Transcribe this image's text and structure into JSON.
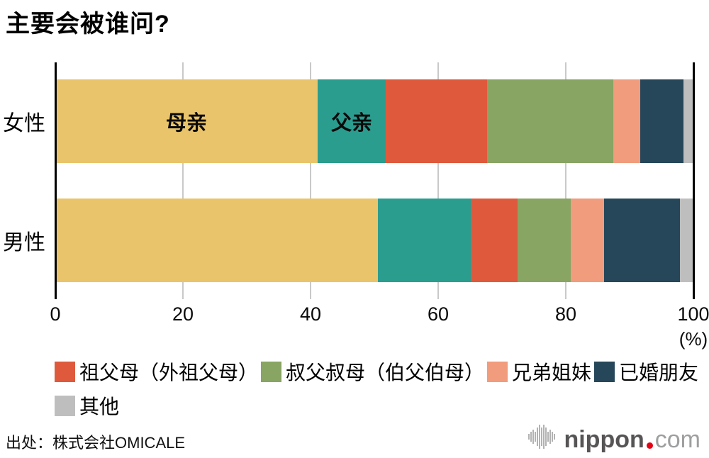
{
  "title": "主要会被谁问?",
  "chart_data": {
    "type": "bar",
    "orientation": "horizontal",
    "stacked": true,
    "unit": "%",
    "title": "主要会被谁问?",
    "categories": [
      "母亲",
      "父亲",
      "祖父母（外祖父母）",
      "叔父叔母（伯父伯母）",
      "兄弟姐妹",
      "已婚朋友",
      "其他"
    ],
    "colors": [
      "#E9C46A",
      "#2A9D8F",
      "#DF5A3C",
      "#88A563",
      "#F19C7C",
      "#26475A",
      "#BEBEBE"
    ],
    "series": [
      {
        "name": "女性",
        "values": [
          41.1,
          10.7,
          15.9,
          19.7,
          4.3,
          6.7,
          1.6
        ],
        "inline_labels": [
          "母亲",
          "父亲",
          "",
          "",
          "",
          "",
          ""
        ]
      },
      {
        "name": "男性",
        "values": [
          50.6,
          14.5,
          7.3,
          8.4,
          5.2,
          11.9,
          2.1
        ],
        "inline_labels": [
          "",
          "",
          "",
          "",
          "",
          "",
          ""
        ]
      }
    ],
    "xlim": [
      0,
      100
    ],
    "xticks": [
      0,
      20,
      40,
      60,
      80,
      100
    ],
    "x_axis_unit_label": "(%)",
    "grid": true,
    "legend_position": "bottom"
  },
  "legend": {
    "items": [
      {
        "label": "祖父母（外祖父母）",
        "color": "#DF5A3C"
      },
      {
        "label": "叔父叔母（伯父伯母）",
        "color": "#88A563"
      },
      {
        "label": "兄弟姐妹",
        "color": "#F19C7C"
      },
      {
        "label": "已婚朋友",
        "color": "#26475A"
      },
      {
        "label": "其他",
        "color": "#BEBEBE"
      }
    ],
    "row_break_index": 4
  },
  "footer": {
    "source": "出处：株式会社OMICALE",
    "logo": {
      "name": "nippon",
      "suffix": "com",
      "dot_color": "#e60012"
    }
  }
}
